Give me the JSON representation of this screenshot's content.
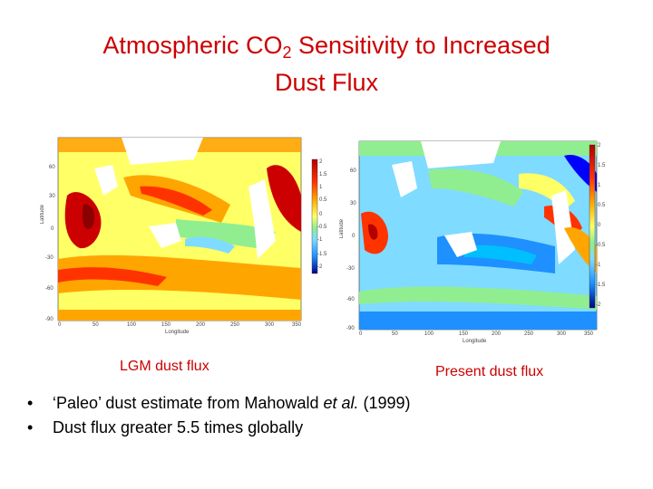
{
  "title": {
    "prefix": "Atmospheric CO",
    "subscript": "2",
    "rest": " Sensitivity to Increased",
    "line2": "Dust Flux"
  },
  "maps": {
    "lgm": {
      "caption": "LGM dust flux",
      "x_axis_label": "Longitude",
      "y_axis_label": "Latitude",
      "x_ticks": [
        "0",
        "50",
        "100",
        "150",
        "200",
        "250",
        "300",
        "350"
      ],
      "y_ticks": [
        "60",
        "30",
        "0",
        "-30",
        "-60",
        "-90"
      ],
      "colorbar_ticks": [
        "2",
        "1.5",
        "1",
        "0.5",
        "0",
        "-0.5",
        "-1",
        "-1.5",
        "-2"
      ]
    },
    "present": {
      "caption": "Present dust flux",
      "x_axis_label": "Longitude",
      "y_axis_label": "Latitude",
      "x_ticks": [
        "0",
        "50",
        "100",
        "150",
        "200",
        "250",
        "300",
        "350"
      ],
      "y_ticks": [
        "60",
        "30",
        "0",
        "-30",
        "-60",
        "-90"
      ],
      "colorbar_ticks": [
        "2",
        "1.5",
        "1",
        "0.5",
        "0",
        "-0.5",
        "-1",
        "-1.5",
        "-2"
      ]
    }
  },
  "colors": {
    "title": "#cc0000",
    "scale": [
      "#00008b",
      "#0000ff",
      "#1e90ff",
      "#00bfff",
      "#7fdbff",
      "#90ee90",
      "#ffff66",
      "#ffa500",
      "#ff3300",
      "#b30000"
    ]
  },
  "bullets": [
    {
      "before": "‘Paleo’ dust estimate from Mahowald ",
      "em": "et al.",
      "after": " (1999)"
    },
    {
      "before": "Dust flux greater 5.5 times globally",
      "em": "",
      "after": ""
    }
  ]
}
